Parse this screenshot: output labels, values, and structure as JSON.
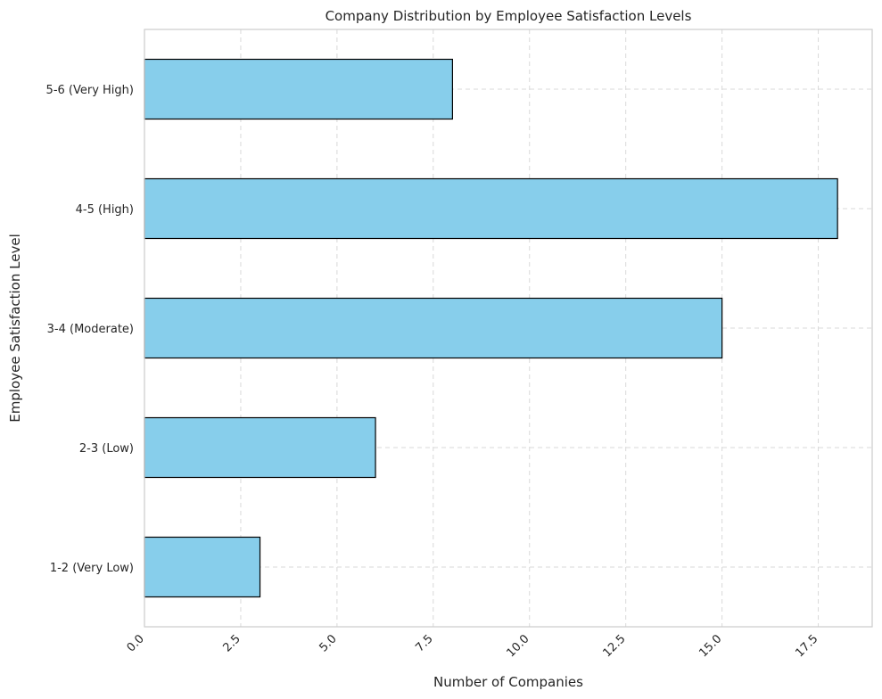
{
  "chart_data": {
    "type": "bar",
    "orientation": "horizontal",
    "title": "Company Distribution by Employee Satisfaction Levels",
    "xlabel": "Number of Companies",
    "ylabel": "Employee Satisfaction Level",
    "categories": [
      "1-2 (Very Low)",
      "2-3 (Low)",
      "3-4 (Moderate)",
      "4-5 (High)",
      "5-6 (Very High)"
    ],
    "values": [
      3,
      6,
      15,
      18,
      8
    ],
    "xlim": [
      0,
      18.9
    ],
    "x_ticks": [
      0.0,
      2.5,
      5.0,
      7.5,
      10.0,
      12.5,
      15.0,
      17.5
    ],
    "x_tick_labels": [
      "0.0",
      "2.5",
      "5.0",
      "7.5",
      "10.0",
      "12.5",
      "15.0",
      "17.5"
    ],
    "x_tick_rotation_deg": 45,
    "grid": true,
    "bar_color": "#87ceeb",
    "bar_edge_color": "#000000"
  }
}
